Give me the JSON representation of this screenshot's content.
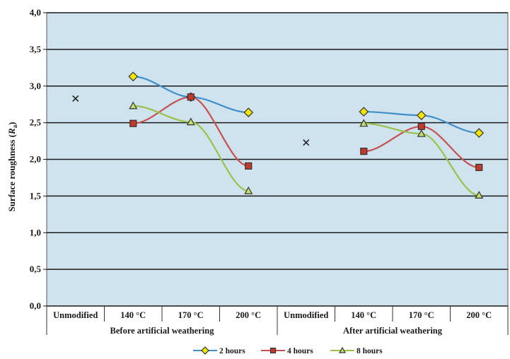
{
  "chart_data": {
    "type": "line",
    "ylabel": "Surface roughness (Ra)",
    "ylabel_main": "Surface roughness (",
    "ylabel_var": "R",
    "ylabel_sub": "a",
    "ylabel_end": ")",
    "ylim": [
      0,
      4
    ],
    "ytick_labels": [
      "0,0",
      "0,5",
      "1,0",
      "1,5",
      "2,0",
      "2,5",
      "3,0",
      "3,5",
      "4,0"
    ],
    "categories": [
      "Unmodified",
      "140 °C",
      "170 °C",
      "200 °C",
      "Unmodified",
      "140 °C",
      "170 °C",
      "200 °C"
    ],
    "groups": [
      "Before artificial weathering",
      "After artificial weathering"
    ],
    "grid": true,
    "plot_background": "#cfe3ee",
    "legend_position": "bottom",
    "series": [
      {
        "name": "2 hours",
        "marker": "diamond",
        "line_color": "#3f8fc9",
        "marker_fill": "#f5e400",
        "values": [
          null,
          3.13,
          2.85,
          2.64,
          null,
          2.65,
          2.6,
          2.36
        ]
      },
      {
        "name": "4 hours",
        "marker": "square",
        "line_color": "#c85050",
        "marker_fill": "#c0392b",
        "values": [
          null,
          2.49,
          2.85,
          1.91,
          null,
          2.11,
          2.45,
          1.89
        ]
      },
      {
        "name": "8 hours",
        "marker": "triangle",
        "line_color": "#9ac24a",
        "marker_fill": "#c9de6a",
        "values": [
          null,
          2.73,
          2.51,
          1.57,
          null,
          2.49,
          2.35,
          1.51
        ]
      }
    ],
    "unmodified_points": {
      "marker": "x",
      "values": [
        2.83,
        2.23
      ]
    }
  }
}
